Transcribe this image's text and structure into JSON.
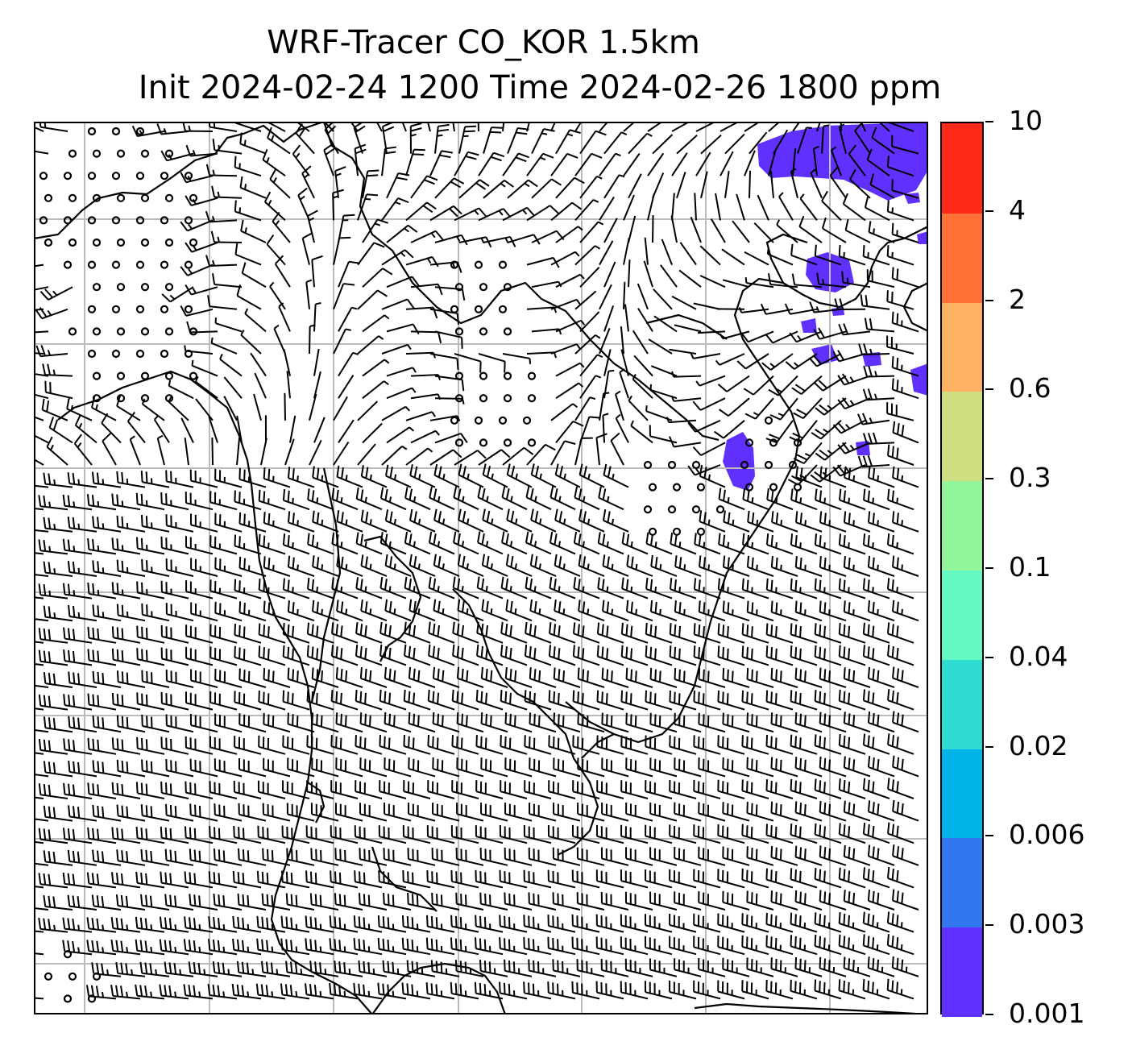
{
  "title": {
    "line1": "WRF-Tracer CO_KOR 1.5km",
    "line2": "Init 2024-02-24 1200 Time 2024-02-26 1800 ppm"
  },
  "colorbar": {
    "levels": [
      "0.001",
      "0.003",
      "0.006",
      "0.02",
      "0.04",
      "0.1",
      "0.3",
      "0.6",
      "2",
      "4",
      "10"
    ],
    "colors": [
      "#6030ff",
      "#3377f0",
      "#00b4ea",
      "#2edcd1",
      "#64f8c2",
      "#92f59a",
      "#d0de82",
      "#fdb163",
      "#ff7136",
      "#ff2919"
    ]
  },
  "map": {
    "tracer_color": "#6030ff",
    "barb_color": "#000000",
    "grid_color": "#bbbbbb",
    "coastline_color": "#000000"
  }
}
